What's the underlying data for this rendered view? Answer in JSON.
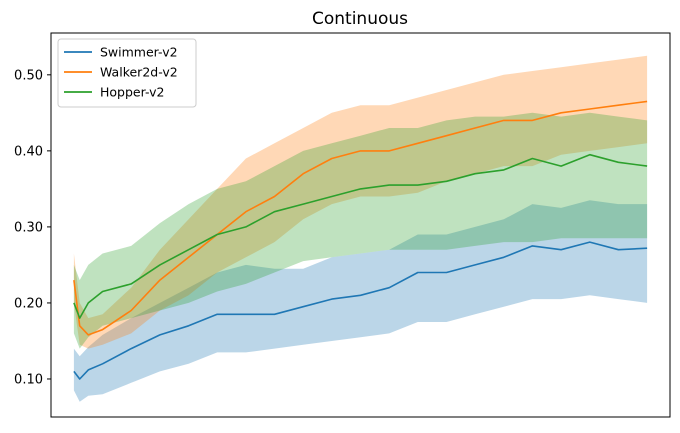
{
  "chart_data": {
    "type": "line",
    "title": "Continuous",
    "xlabel": "",
    "ylabel": "",
    "ylim": [
      0.05,
      0.555
    ],
    "xlim": [
      -8,
      208
    ],
    "yticks": [
      0.1,
      0.2,
      0.3,
      0.4,
      0.5
    ],
    "ytick_labels": [
      "0.10",
      "0.20",
      "0.30",
      "0.40",
      "0.50"
    ],
    "grid": false,
    "legend": "top-left",
    "x": [
      0,
      2,
      5,
      10,
      20,
      30,
      40,
      50,
      60,
      70,
      80,
      90,
      100,
      110,
      120,
      130,
      140,
      150,
      160,
      170,
      180,
      190,
      200
    ],
    "series": [
      {
        "name": "Swimmer-v2",
        "color": "#1f77b4",
        "fill": "#1f77b4",
        "values": [
          0.11,
          0.1,
          0.112,
          0.12,
          0.14,
          0.158,
          0.17,
          0.185,
          0.185,
          0.185,
          0.195,
          0.205,
          0.21,
          0.22,
          0.24,
          0.24,
          0.25,
          0.26,
          0.275,
          0.27,
          0.28,
          0.27,
          0.272
        ],
        "lower": [
          0.085,
          0.07,
          0.078,
          0.08,
          0.095,
          0.11,
          0.12,
          0.135,
          0.135,
          0.14,
          0.145,
          0.15,
          0.155,
          0.16,
          0.175,
          0.175,
          0.185,
          0.195,
          0.205,
          0.205,
          0.21,
          0.205,
          0.2
        ],
        "upper": [
          0.14,
          0.13,
          0.142,
          0.158,
          0.18,
          0.2,
          0.22,
          0.24,
          0.25,
          0.245,
          0.245,
          0.26,
          0.265,
          0.27,
          0.29,
          0.29,
          0.3,
          0.31,
          0.33,
          0.325,
          0.335,
          0.33,
          0.33
        ]
      },
      {
        "name": "Walker2d-v2",
        "color": "#ff7f0e",
        "fill": "#ff7f0e",
        "values": [
          0.23,
          0.17,
          0.158,
          0.165,
          0.19,
          0.23,
          0.26,
          0.29,
          0.32,
          0.34,
          0.37,
          0.39,
          0.4,
          0.4,
          0.41,
          0.42,
          0.43,
          0.44,
          0.44,
          0.45,
          0.455,
          0.46,
          0.465
        ],
        "lower": [
          0.2,
          0.145,
          0.14,
          0.145,
          0.16,
          0.19,
          0.21,
          0.24,
          0.26,
          0.28,
          0.31,
          0.33,
          0.34,
          0.34,
          0.345,
          0.36,
          0.37,
          0.38,
          0.38,
          0.395,
          0.4,
          0.405,
          0.41
        ],
        "upper": [
          0.265,
          0.2,
          0.18,
          0.185,
          0.22,
          0.27,
          0.31,
          0.35,
          0.39,
          0.41,
          0.43,
          0.45,
          0.46,
          0.46,
          0.47,
          0.48,
          0.49,
          0.5,
          0.505,
          0.51,
          0.515,
          0.52,
          0.525
        ]
      },
      {
        "name": "Hopper-v2",
        "color": "#2ca02c",
        "fill": "#2ca02c",
        "values": [
          0.2,
          0.18,
          0.2,
          0.215,
          0.225,
          0.25,
          0.27,
          0.29,
          0.3,
          0.32,
          0.33,
          0.34,
          0.35,
          0.355,
          0.355,
          0.36,
          0.37,
          0.375,
          0.39,
          0.38,
          0.395,
          0.385,
          0.38
        ],
        "lower": [
          0.16,
          0.14,
          0.155,
          0.17,
          0.18,
          0.19,
          0.2,
          0.215,
          0.225,
          0.24,
          0.255,
          0.26,
          0.265,
          0.27,
          0.27,
          0.27,
          0.275,
          0.28,
          0.28,
          0.285,
          0.285,
          0.285,
          0.285
        ],
        "upper": [
          0.25,
          0.23,
          0.25,
          0.265,
          0.275,
          0.305,
          0.33,
          0.35,
          0.36,
          0.38,
          0.4,
          0.41,
          0.42,
          0.43,
          0.43,
          0.44,
          0.445,
          0.445,
          0.45,
          0.445,
          0.45,
          0.445,
          0.44
        ]
      }
    ]
  }
}
